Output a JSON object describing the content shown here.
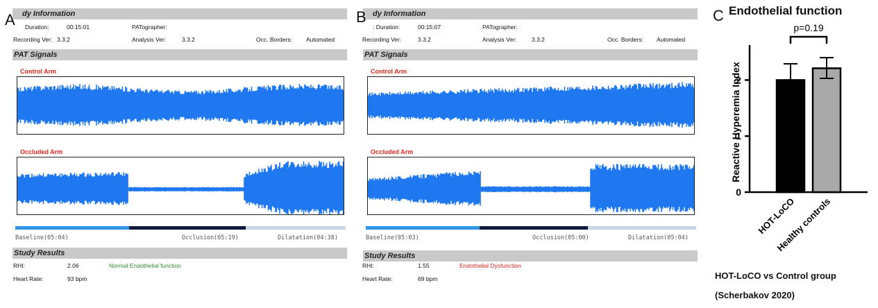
{
  "panel_a": {
    "letter": "A",
    "header_title": "dy Information",
    "duration_label": "Duration:",
    "duration_value": "00:15:01",
    "patographer_label": "PATographer:",
    "recording_ver_label": "Recording Ver:",
    "recording_ver_value": "3.3.2",
    "analysis_ver_label": "Analysis Ver:",
    "analysis_ver_value": "3.3.2",
    "occ_borders_label": "Occ. Borders:",
    "occ_borders_value": "Automated",
    "pat_signals_title": "PAT Signals",
    "control_arm_label": "Control Arm",
    "occluded_arm_label": "Occluded Arm",
    "baseline_label": "Baseline(05:04)",
    "occlusion_label": "Occlusion(05:19)",
    "dilatation_label": "Dilatation(04:38)",
    "study_results_title": "Study Results",
    "rhi_label": "RHI:",
    "rhi_value": "2.06",
    "rhi_status": "Normal  Endothelial function",
    "rhi_status_color": "#2e8b2e",
    "heart_rate_label": "Heart Rate:",
    "heart_rate_value": "93 bpm"
  },
  "panel_b": {
    "letter": "B",
    "header_title": "dy Information",
    "duration_label": ": Duration:",
    "duration_value": "00:15:07",
    "patographer_label": "PATographer:",
    "recording_ver_label": "Recording Ver:",
    "recording_ver_value": "3.3.2",
    "analysis_ver_label": "Analysis Ver:",
    "analysis_ver_value": "3.3.2",
    "occ_borders_label": "Occ. Borders:",
    "occ_borders_value": "Automated",
    "pat_signals_title": "PAT Signals",
    "control_arm_label": "Control Arm",
    "occluded_arm_label": "Occluded Arm",
    "baseline_label": "Baseline(05:03)",
    "occlusion_label": "Occlusion(05:00)",
    "dilatation_label": "Dilatation(05:04)",
    "study_results_title": "Study Results",
    "rhi_label": "RHI:",
    "rhi_value": "1.55",
    "rhi_status": "Endothelial Dysfunction",
    "rhi_status_color": "#e0261b",
    "heart_rate_label": "Heart Rate:",
    "heart_rate_value": "69 bpm"
  },
  "colors": {
    "signal": "#1f78f0",
    "phase_baseline": "#2f95e8",
    "phase_occlusion": "#0d1a3a",
    "phase_dilatation": "#c7d4e6",
    "bar_hot_loco": "#000000",
    "bar_healthy": "#a9a9a9"
  },
  "panel_c": {
    "letter": "C",
    "caption_line1": "HOT-LoCO vs Control group",
    "caption_line2": "(Scherbakov 2020)"
  },
  "chart_data": {
    "type": "bar",
    "title": "Endothelial function",
    "ylabel": "Reactive Hyperemia Index",
    "xlabel": "",
    "categories": [
      "HOT-LoCO",
      "Healthy controls"
    ],
    "values": [
      2.0,
      2.21
    ],
    "error_upper": [
      2.29,
      2.4
    ],
    "error_lower": [
      2.0,
      2.03
    ],
    "ylim": [
      0,
      2.5
    ],
    "yticks": [
      0,
      1,
      2
    ],
    "ytick_labels": [
      "0",
      "1",
      "2"
    ],
    "annotation": "p=0.19",
    "grid": false
  }
}
